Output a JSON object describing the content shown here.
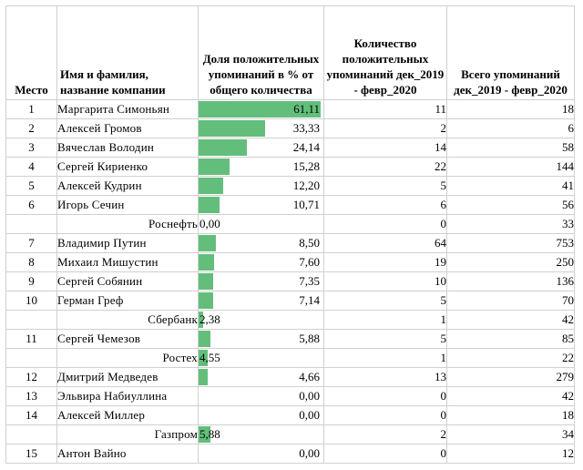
{
  "headers": {
    "rank": "Место",
    "name": "Имя и фамилия, название компании",
    "share": "Доля положительных упоминаний в % от общего количества",
    "positive": "Количество положительных упоминаний дек_2019 - февр_2020",
    "total": "Всего упоминаний дек_2019 - февр_2020"
  },
  "rows": [
    {
      "rank": "1",
      "name": "Маргарита Симоньян",
      "share": "61,11",
      "share_value": 61.11,
      "positive": "11",
      "total": "18",
      "sub": false
    },
    {
      "rank": "2",
      "name": "Алексей Громов",
      "share": "33,33",
      "share_value": 33.33,
      "positive": "2",
      "total": "6",
      "sub": false
    },
    {
      "rank": "3",
      "name": "Вячеслав Володин",
      "share": "24,14",
      "share_value": 24.14,
      "positive": "14",
      "total": "58",
      "sub": false
    },
    {
      "rank": "4",
      "name": "Сергей Кириенко",
      "share": "15,28",
      "share_value": 15.28,
      "positive": "22",
      "total": "144",
      "sub": false
    },
    {
      "rank": "5",
      "name": "Алексей Кудрин",
      "share": "12,20",
      "share_value": 12.2,
      "positive": "5",
      "total": "41",
      "sub": false
    },
    {
      "rank": "6",
      "name": "Игорь Сечин",
      "share": "10,71",
      "share_value": 10.71,
      "positive": "6",
      "total": "56",
      "sub": false
    },
    {
      "rank": "",
      "name": "Роснефть",
      "share": "0,00",
      "share_value": 0,
      "positive": "0",
      "total": "33",
      "sub": true
    },
    {
      "rank": "7",
      "name": "Владимир Путин",
      "share": "8,50",
      "share_value": 8.5,
      "positive": "64",
      "total": "753",
      "sub": false
    },
    {
      "rank": "8",
      "name": "Михаил Мишустин",
      "share": "7,60",
      "share_value": 7.6,
      "positive": "19",
      "total": "250",
      "sub": false
    },
    {
      "rank": "9",
      "name": "Сергей Собянин",
      "share": "7,35",
      "share_value": 7.35,
      "positive": "10",
      "total": "136",
      "sub": false
    },
    {
      "rank": "10",
      "name": "Герман Греф",
      "share": "7,14",
      "share_value": 7.14,
      "positive": "5",
      "total": "70",
      "sub": false
    },
    {
      "rank": "",
      "name": "Сбербанк",
      "share": "2,38",
      "share_value": 2.38,
      "positive": "1",
      "total": "42",
      "sub": true
    },
    {
      "rank": "11",
      "name": "Сергей Чемезов",
      "share": "5,88",
      "share_value": 5.88,
      "positive": "5",
      "total": "85",
      "sub": false
    },
    {
      "rank": "",
      "name": "Ростех",
      "share": "4,55",
      "share_value": 4.55,
      "positive": "1",
      "total": "22",
      "sub": true
    },
    {
      "rank": "12",
      "name": "Дмитрий Медведев",
      "share": "4,66",
      "share_value": 4.66,
      "positive": "13",
      "total": "279",
      "sub": false
    },
    {
      "rank": "13",
      "name": "Эльвира Набиуллина",
      "share": "0,00",
      "share_value": 0,
      "positive": "0",
      "total": "42",
      "sub": false
    },
    {
      "rank": "14",
      "name": "Алексей Миллер",
      "share": "0,00",
      "share_value": 0,
      "positive": "0",
      "total": "18",
      "sub": false
    },
    {
      "rank": "",
      "name": "Газпром",
      "share": "5,88",
      "share_value": 5.88,
      "positive": "2",
      "total": "34",
      "sub": true
    },
    {
      "rank": "15",
      "name": "Антон Вайно",
      "share": "0,00",
      "share_value": 0,
      "positive": "0",
      "total": "12",
      "sub": false
    }
  ],
  "colors": {
    "data_bar": "#63be7b",
    "grid": "#d0d0d0"
  }
}
